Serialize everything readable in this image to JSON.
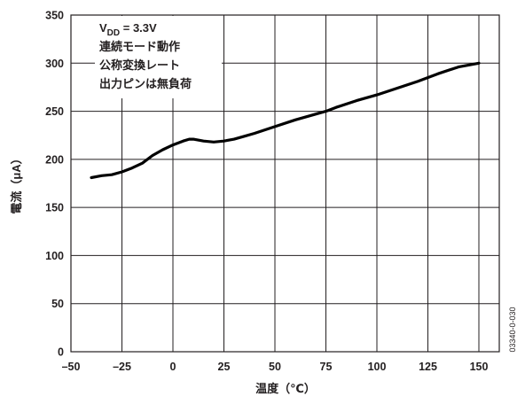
{
  "chart_data": {
    "type": "line",
    "xlabel": "温度（℃）",
    "ylabel": "電流（μA）",
    "xlim": [
      -50,
      160
    ],
    "ylim": [
      0,
      350
    ],
    "xticks": [
      -50,
      -25,
      0,
      25,
      50,
      75,
      100,
      125,
      150
    ],
    "xtick_labels": [
      "–50",
      "–25",
      "0",
      "25",
      "50",
      "75",
      "100",
      "125",
      "150"
    ],
    "yticks": [
      0,
      50,
      100,
      150,
      200,
      250,
      300,
      350
    ],
    "ytick_labels": [
      "0",
      "50",
      "100",
      "150",
      "200",
      "250",
      "300",
      "350"
    ],
    "grid": true,
    "annotation": {
      "vdd_symbol": "V",
      "vdd_subscript": "DD",
      "vdd_value": " = 3.3V",
      "lines": [
        "連続モード動作",
        "公称変換レート",
        "出力ピンは無負荷"
      ]
    },
    "figure_id": "03340-0-030",
    "series": [
      {
        "x": [
          -40,
          -35,
          -30,
          -25,
          -20,
          -15,
          -10,
          -5,
          0,
          5,
          8,
          10,
          15,
          20,
          25,
          30,
          35,
          40,
          50,
          60,
          70,
          75,
          80,
          90,
          100,
          110,
          120,
          130,
          140,
          150
        ],
        "y": [
          181,
          183,
          184,
          187,
          191,
          196,
          204,
          210,
          215,
          219,
          221,
          221,
          219,
          218,
          219,
          221,
          224,
          227,
          234,
          241,
          247,
          250,
          254,
          261,
          267,
          274,
          281,
          289,
          296,
          300
        ],
        "color": "#000000"
      }
    ]
  }
}
